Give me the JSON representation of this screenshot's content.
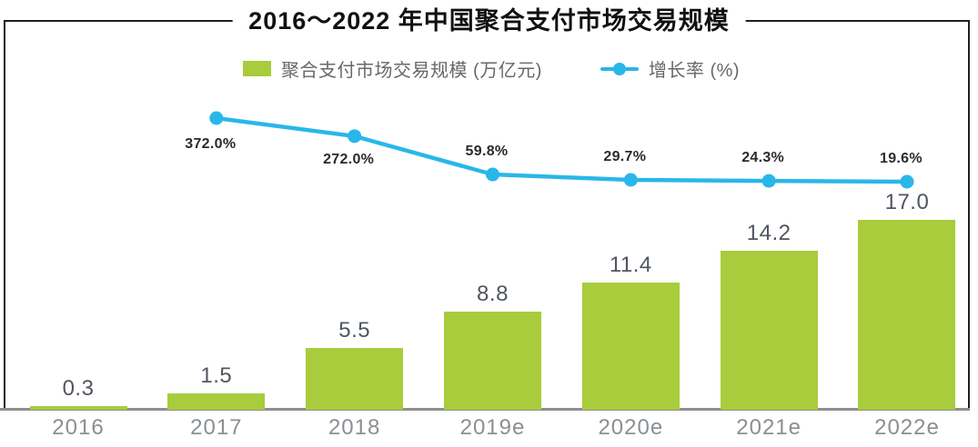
{
  "title": "2016～2022 年中国聚合支付市场交易规模",
  "legend": {
    "items": [
      {
        "label": "聚合支付市场交易规模 (万亿元)",
        "swatch": "bar-square",
        "color": "#a9cc3c"
      },
      {
        "label": "增长率 (%)",
        "swatch": "line-dot",
        "color": "#29b7e9"
      }
    ]
  },
  "colors": {
    "bar": "#a9cc3c",
    "line": "#29b7e9",
    "axis": "#8e8e8e",
    "tick_label": "#8a8f94",
    "bar_value_label": "#50565f",
    "line_value_label": "#2b2b2b",
    "frame_border": "#1f1f1f",
    "legend_text": "#66686a",
    "title_text": "#111111"
  },
  "chart_data": {
    "type": "bar",
    "title": "2016～2022 年中国聚合支付市场交易规模",
    "categories": [
      "2016",
      "2017",
      "2018",
      "2019e",
      "2020e",
      "2021e",
      "2022e"
    ],
    "series": [
      {
        "name": "聚合支付市场交易规模 (万亿元)",
        "type": "bar",
        "color": "#a9cc3c",
        "values": [
          0.3,
          1.5,
          5.5,
          8.8,
          11.4,
          14.2,
          17.0
        ],
        "value_labels": [
          "0.3",
          "1.5",
          "5.5",
          "8.8",
          "11.4",
          "14.2",
          "17.0"
        ]
      },
      {
        "name": "增长率 (%)",
        "type": "line",
        "color": "#29b7e9",
        "categories": [
          "2017",
          "2018",
          "2019e",
          "2020e",
          "2021e",
          "2022e"
        ],
        "values": [
          372.0,
          272.0,
          59.8,
          29.7,
          24.3,
          19.6
        ],
        "value_labels": [
          "372.0%",
          "272.0%",
          "59.8%",
          "29.7%",
          "24.3%",
          "19.6%"
        ],
        "label_positions": [
          "below-left",
          "below",
          "above",
          "above",
          "above",
          "above"
        ]
      }
    ],
    "xlabel": "",
    "ylabel": "",
    "ylim_bar_axis": [
      0,
      18.5
    ],
    "grid": false,
    "legend_position": "top",
    "value_labels_shown": true,
    "frame": "left-top-right border, bottom is gray x-axis line"
  }
}
